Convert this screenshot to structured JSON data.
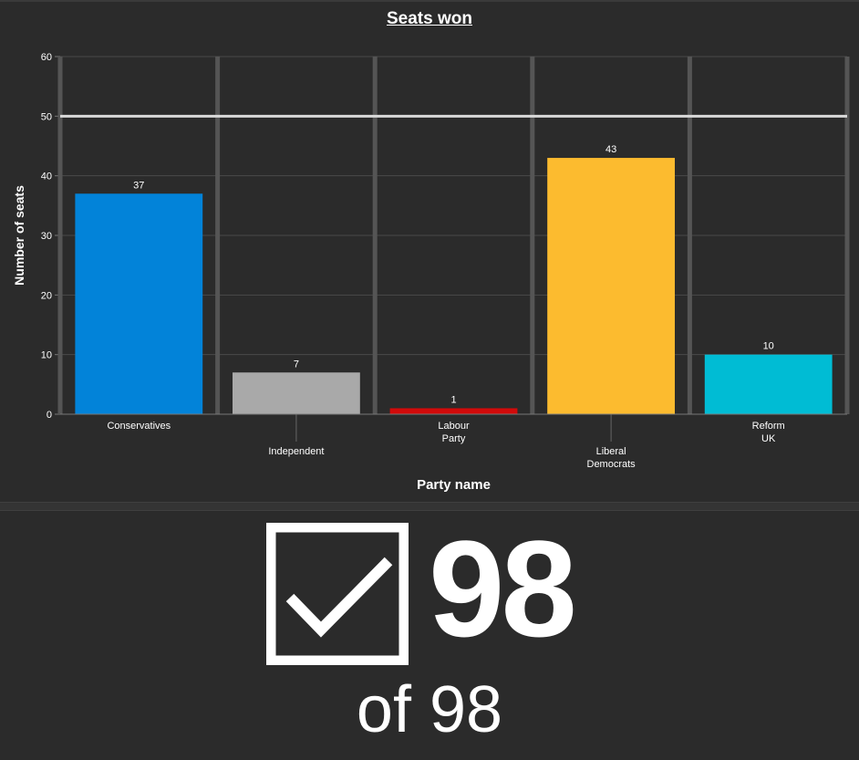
{
  "chart_data": {
    "type": "bar",
    "title": "Seats won",
    "xlabel": "Party name",
    "ylabel": "Number of seats",
    "categories": [
      "Conservatives",
      "Independent",
      "Labour Party",
      "Liberal Democrats",
      "Reform UK"
    ],
    "category_lines": [
      [
        "Conservatives"
      ],
      [
        "Independent"
      ],
      [
        "Labour",
        "Party"
      ],
      [
        "Liberal",
        "Democrats"
      ],
      [
        "Reform",
        "UK"
      ]
    ],
    "values": [
      37,
      7,
      1,
      43,
      10
    ],
    "data_labels": [
      "37",
      "7",
      "1",
      "43",
      "10"
    ],
    "colors": [
      "#0283d9",
      "#a9a9a9",
      "#d10a0a",
      "#fcbb2f",
      "#00bcd4"
    ],
    "ylim": [
      0,
      60
    ],
    "yticks": [
      0,
      10,
      20,
      30,
      40,
      50,
      60
    ],
    "reference_line": 50,
    "grid": true,
    "legend": "none"
  },
  "indicator": {
    "icon": "checkbox-checked-icon",
    "value": "98",
    "subtitle": "of 98"
  }
}
